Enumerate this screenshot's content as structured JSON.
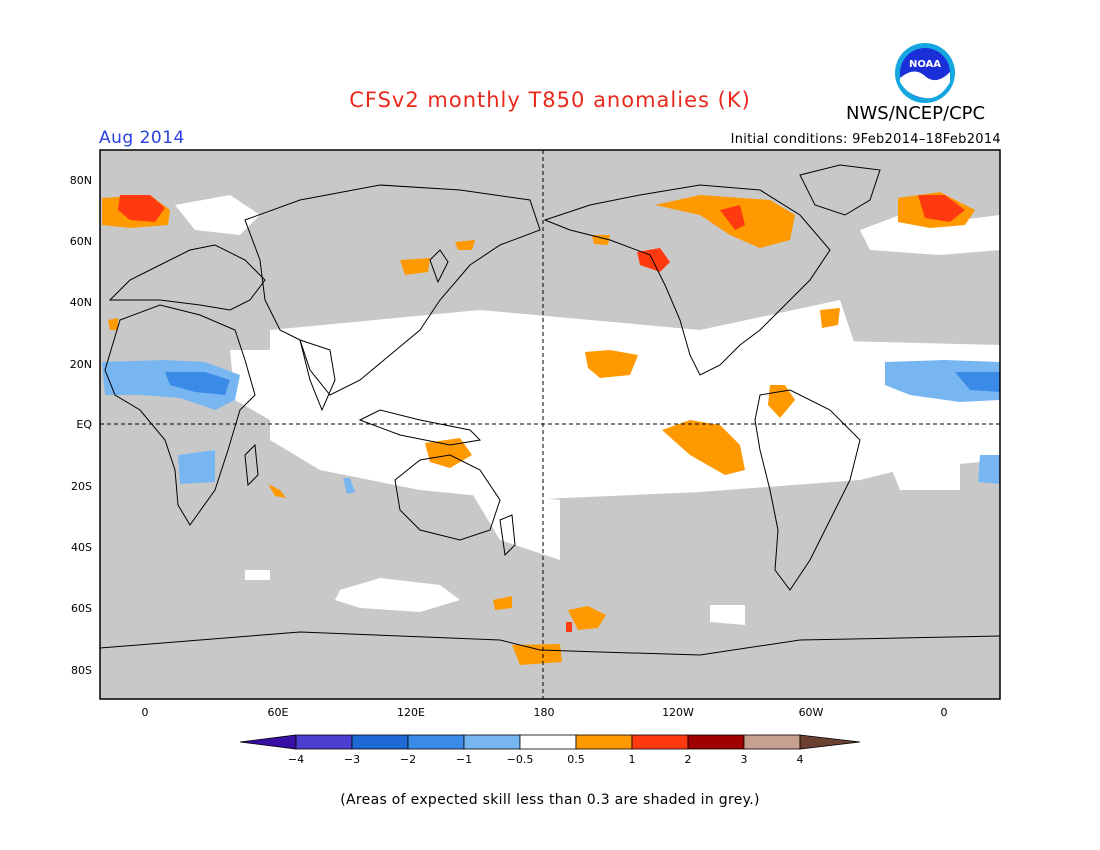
{
  "header": {
    "title": "CFSv2 monthly T850 anomalies (K)",
    "month": "Aug 2014",
    "agency": "NWS/NCEP/CPC",
    "initial_conditions": "Initial conditions: 9Feb2014–18Feb2014"
  },
  "logo": {
    "text": "NOAA",
    "icon": "noaa-logo-icon"
  },
  "map": {
    "lat_ticks": [
      "80N",
      "60N",
      "40N",
      "20N",
      "EQ",
      "20S",
      "40S",
      "60S",
      "80S"
    ],
    "lon_ticks": [
      "0",
      "60E",
      "120E",
      "180",
      "120W",
      "60W",
      "0"
    ],
    "colors": {
      "land_ocean_low_skill": "#c8c8c8",
      "no_anomaly": "#ffffff",
      "coast": "#000000"
    }
  },
  "colorbar": {
    "labels": [
      "−4",
      "−3",
      "−2",
      "−1",
      "−0.5",
      "0.5",
      "1",
      "2",
      "3",
      "4"
    ],
    "colors": [
      "#3a0fa6",
      "#4a3fd0",
      "#1f6ad6",
      "#3a8ae8",
      "#78b6f2",
      "#ffffff",
      "#ff9900",
      "#ff3a10",
      "#a00000",
      "#c8a090",
      "#6b4030"
    ]
  },
  "footnote": "(Areas of expected skill less than 0.3 are shaded in grey.)"
}
